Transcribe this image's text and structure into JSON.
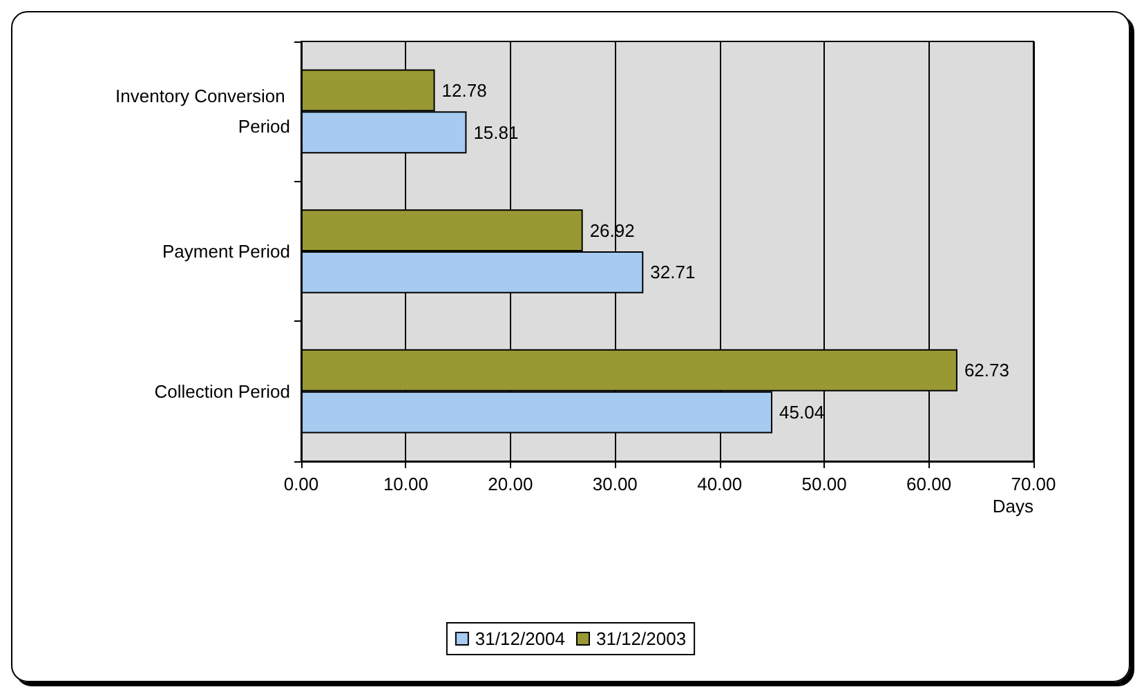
{
  "chart_data": {
    "type": "bar",
    "orientation": "horizontal",
    "categories": [
      "Inventory Conversion Period",
      "Payment Period",
      "Collection Period"
    ],
    "series": [
      {
        "name": "31/12/2003",
        "color": "#999933",
        "values": [
          12.78,
          26.92,
          62.73
        ]
      },
      {
        "name": "31/12/2004",
        "color": "#a6caf0",
        "values": [
          15.81,
          32.71,
          45.04
        ]
      }
    ],
    "xlabel": "Days",
    "xlim": [
      0,
      70
    ],
    "xticks": [
      {
        "value": 0,
        "label": "0.00"
      },
      {
        "value": 10,
        "label": "10.00"
      },
      {
        "value": 20,
        "label": "20.00"
      },
      {
        "value": 30,
        "label": "30.00"
      },
      {
        "value": 40,
        "label": "40.00"
      },
      {
        "value": 50,
        "label": "50.00"
      },
      {
        "value": 60,
        "label": "60.00"
      },
      {
        "value": 70,
        "label": "70.00"
      }
    ],
    "grid": "x",
    "legend": "bottom",
    "data_labels": true
  }
}
